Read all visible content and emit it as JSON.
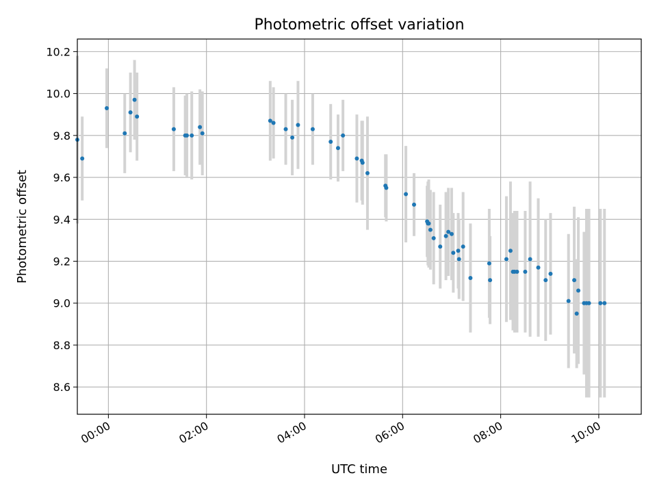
{
  "chart_data": {
    "type": "scatter",
    "title": "Photometric offset variation",
    "xlabel": "UTC time",
    "ylabel": "Photometric offset",
    "xlim": [
      "-00:38",
      "10:52"
    ],
    "ylim": [
      8.47,
      10.26
    ],
    "x_ticks": [
      "00:00",
      "02:00",
      "04:00",
      "06:00",
      "08:00",
      "10:00"
    ],
    "y_ticks": [
      8.6,
      8.8,
      9.0,
      9.2,
      9.4,
      9.6,
      9.8,
      10.0,
      10.2
    ],
    "grid": true,
    "colors": {
      "points": "#1f77b4",
      "error_bars": "#d3d3d3",
      "grid": "#b0b0b0"
    },
    "series": [
      {
        "x": [
          "-00:38",
          "-00:32",
          "-00:02",
          "00:20",
          "00:27",
          "00:32",
          "00:35",
          "01:20",
          "01:34",
          "01:36",
          "01:42",
          "01:52",
          "01:55",
          "03:18",
          "03:22",
          "03:37",
          "03:45",
          "03:52",
          "04:10",
          "04:32",
          "04:41",
          "04:47",
          "05:04",
          "05:10",
          "05:11",
          "05:17",
          "05:39",
          "05:40",
          "06:04",
          "06:14",
          "06:30",
          "06:31",
          "06:32",
          "06:34",
          "06:38",
          "06:46",
          "06:53",
          "06:56",
          "07:00",
          "07:02",
          "07:08",
          "07:09",
          "07:14",
          "07:23",
          "07:46",
          "07:47",
          "08:07",
          "08:12",
          "08:15",
          "08:17",
          "08:20",
          "08:30",
          "08:36",
          "08:46",
          "08:55",
          "09:01",
          "09:23",
          "09:30",
          "09:33",
          "09:35",
          "09:42",
          "09:45",
          "09:48",
          "10:02",
          "10:07"
        ],
        "y": [
          9.78,
          9.69,
          9.93,
          9.81,
          9.91,
          9.97,
          9.89,
          9.83,
          9.8,
          9.8,
          9.8,
          9.84,
          9.81,
          9.87,
          9.86,
          9.83,
          9.79,
          9.85,
          9.83,
          9.77,
          9.74,
          9.8,
          9.69,
          9.68,
          9.67,
          9.62,
          9.56,
          9.55,
          9.52,
          9.47,
          9.39,
          9.38,
          9.38,
          9.35,
          9.31,
          9.27,
          9.32,
          9.34,
          9.33,
          9.24,
          9.25,
          9.21,
          9.27,
          9.12,
          9.19,
          9.11,
          9.21,
          9.25,
          9.15,
          9.15,
          9.15,
          9.15,
          9.21,
          9.17,
          9.11,
          9.14,
          9.01,
          9.11,
          8.95,
          9.06,
          9.0,
          9.0,
          9.0,
          9.0,
          9.0
        ],
        "error": [
          0.4,
          0.2,
          0.19,
          0.19,
          0.19,
          0.19,
          0.21,
          0.2,
          0.19,
          0.2,
          0.21,
          0.18,
          0.2,
          0.19,
          0.17,
          0.17,
          0.18,
          0.21,
          0.17,
          0.18,
          0.16,
          0.17,
          0.21,
          0.19,
          0.2,
          0.27,
          0.15,
          0.16,
          0.23,
          0.15,
          0.17,
          0.2,
          0.21,
          0.19,
          0.22,
          0.2,
          0.21,
          0.21,
          0.22,
          0.19,
          0.18,
          0.19,
          0.26,
          0.26,
          0.26,
          0.21,
          0.3,
          0.33,
          0.28,
          0.29,
          0.29,
          0.29,
          0.37,
          0.33,
          0.29,
          0.29,
          0.32,
          0.35,
          0.26,
          0.35,
          0.34,
          0.45,
          0.45,
          0.45,
          0.45
        ]
      }
    ]
  }
}
